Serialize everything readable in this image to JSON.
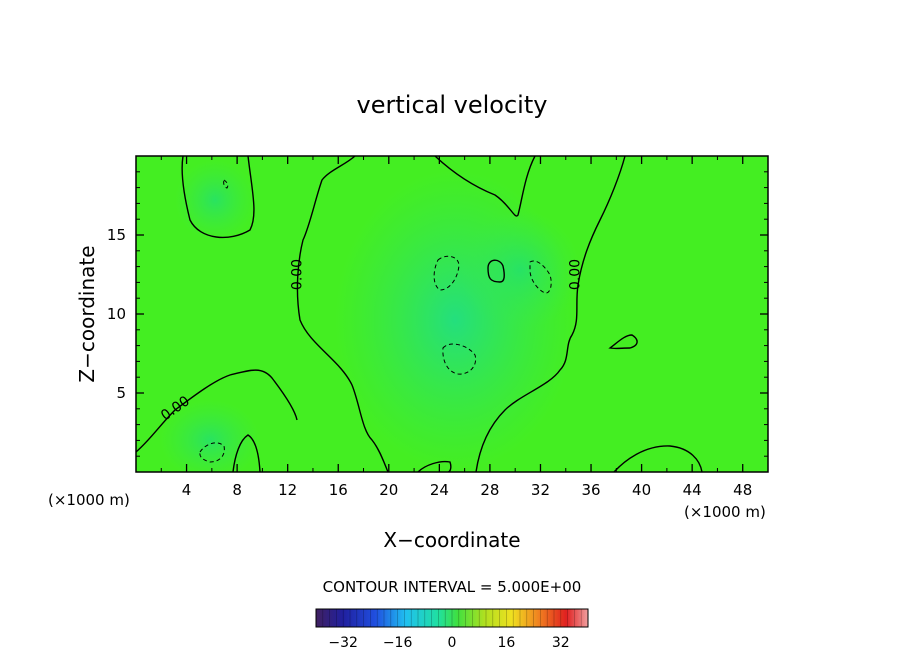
{
  "chart_data": {
    "type": "heatmap",
    "title": "vertical velocity",
    "xlabel": "X−coordinate",
    "ylabel": "Z−coordinate",
    "x_unit_left": "(×1000 m)",
    "x_unit_right": "(×1000 m)",
    "xlim": [
      0,
      50
    ],
    "ylim": [
      0,
      20
    ],
    "x_ticks": [
      4,
      8,
      12,
      16,
      20,
      24,
      28,
      32,
      36,
      40,
      44,
      48
    ],
    "x_tick_labels": [
      "4",
      "8",
      "12",
      "16",
      "20",
      "24",
      "28",
      "32",
      "36",
      "40",
      "44",
      "48"
    ],
    "y_ticks": [
      5,
      10,
      15
    ],
    "y_tick_labels": [
      "5",
      "10",
      "15"
    ],
    "contour_interval_text": "CONTOUR INTERVAL = 5.000E+00",
    "contour_labels": [
      {
        "text": "0.00",
        "x": 13.1,
        "y": 12.5
      },
      {
        "text": "0.00",
        "x": 35.1,
        "y": 12.5
      },
      {
        "text": "0.00",
        "x": 3.3,
        "y": 3.8
      }
    ],
    "colorbar": {
      "range": [
        -40,
        40
      ],
      "tick_values": [
        -32,
        -16,
        0,
        16,
        32
      ],
      "tick_labels": [
        "−32",
        "−16",
        "0",
        "16",
        "32"
      ]
    },
    "field_description_rel": "near-zero velocity field; slightly negative (cyan-green) centered around x=20-32",
    "colors": {
      "field_positive": "#55ee11",
      "field_zero": "#33ee44",
      "field_negative": "#22dd77"
    }
  }
}
